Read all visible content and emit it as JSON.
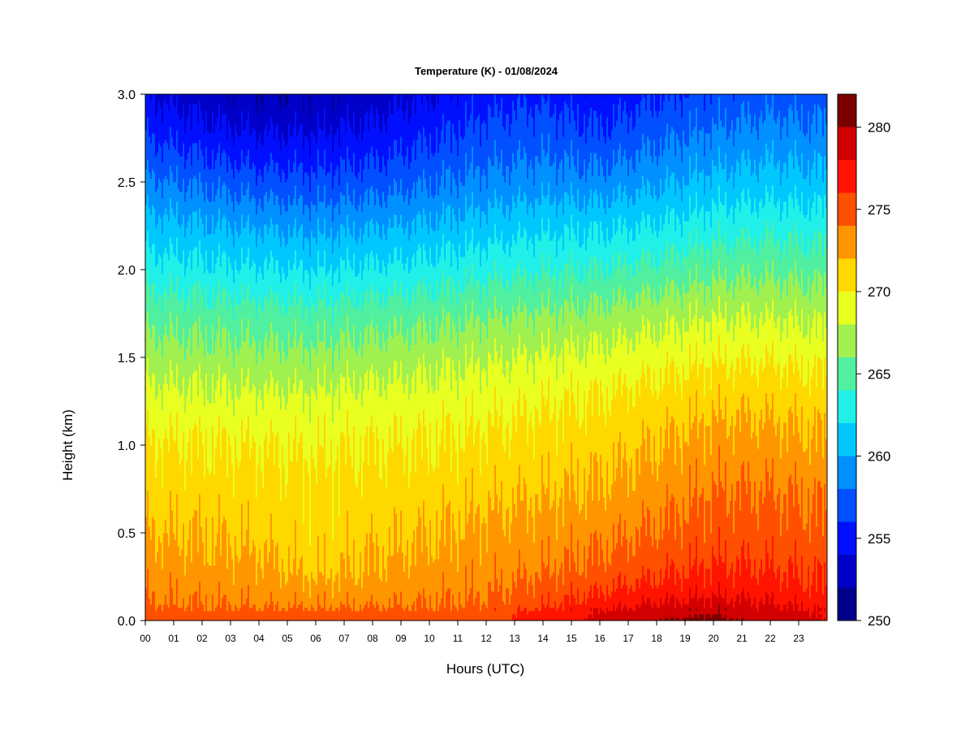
{
  "chart_data": {
    "type": "heatmap",
    "title": "Temperature (K) - 01/08/2024",
    "xlabel": "Hours (UTC)",
    "ylabel": "Height (km)",
    "xlim": [
      0,
      24
    ],
    "ylim": [
      0.0,
      3.0
    ],
    "x_ticks": [
      "00",
      "01",
      "02",
      "03",
      "04",
      "05",
      "06",
      "07",
      "08",
      "09",
      "10",
      "11",
      "12",
      "13",
      "14",
      "15",
      "16",
      "17",
      "18",
      "19",
      "20",
      "21",
      "22",
      "23"
    ],
    "y_ticks": [
      {
        "value": 0.0,
        "label": "0.0"
      },
      {
        "value": 0.5,
        "label": "0.5"
      },
      {
        "value": 1.0,
        "label": "1.0"
      },
      {
        "value": 1.5,
        "label": "1.5"
      },
      {
        "value": 2.0,
        "label": "2.0"
      },
      {
        "value": 2.5,
        "label": "2.5"
      },
      {
        "value": 3.0,
        "label": "3.0"
      }
    ],
    "colorbar": {
      "range": [
        250,
        282
      ],
      "levels": [
        250,
        252,
        254,
        256,
        258,
        260,
        262,
        264,
        266,
        268,
        270,
        272,
        274,
        276,
        278,
        280,
        282
      ],
      "colors": [
        "#00008b",
        "#0000c8",
        "#0010ff",
        "#0050ff",
        "#0090ff",
        "#00c8ff",
        "#20f0e8",
        "#50f0a0",
        "#a0f050",
        "#e8ff20",
        "#ffd800",
        "#ff9600",
        "#ff5000",
        "#ff1400",
        "#d20000",
        "#7d0000"
      ],
      "tick_labels": [
        {
          "value": 250,
          "label": "250"
        },
        {
          "value": 255,
          "label": "255"
        },
        {
          "value": 260,
          "label": "260"
        },
        {
          "value": 265,
          "label": "265"
        },
        {
          "value": 270,
          "label": "270"
        },
        {
          "value": 275,
          "label": "275"
        },
        {
          "value": 280,
          "label": "280"
        }
      ]
    },
    "temperature_grid": {
      "hours": [
        0,
        2,
        4,
        6,
        8,
        10,
        12,
        14,
        16,
        18,
        20,
        22,
        24
      ],
      "heights_km": [
        0.0,
        0.05,
        0.1,
        0.2,
        0.3,
        0.5,
        0.75,
        1.0,
        1.25,
        1.5,
        1.75,
        2.0,
        2.25,
        2.5,
        2.75,
        3.0
      ],
      "values": [
        [
          275.5,
          275.2,
          275.0,
          274.8,
          275.0,
          275.0,
          275.5,
          277.0,
          278.5,
          280.0,
          280.5,
          279.5,
          278.0
        ],
        [
          275.0,
          274.8,
          274.6,
          274.4,
          274.8,
          274.8,
          275.2,
          276.5,
          278.0,
          279.3,
          279.8,
          279.0,
          277.6
        ],
        [
          274.0,
          273.8,
          273.6,
          273.5,
          273.6,
          273.8,
          274.2,
          275.5,
          277.0,
          278.0,
          278.6,
          278.0,
          277.0
        ],
        [
          273.5,
          273.2,
          273.0,
          272.4,
          272.8,
          273.2,
          273.7,
          274.5,
          275.5,
          276.5,
          277.0,
          276.8,
          276.0
        ],
        [
          273.0,
          272.8,
          272.5,
          271.5,
          272.2,
          272.8,
          273.2,
          273.8,
          274.6,
          275.5,
          276.2,
          276.0,
          275.5
        ],
        [
          272.0,
          271.8,
          271.5,
          270.8,
          271.5,
          271.8,
          272.5,
          272.8,
          273.4,
          274.2,
          275.0,
          275.0,
          274.5
        ],
        [
          271.0,
          271.0,
          270.8,
          270.5,
          270.8,
          271.0,
          271.5,
          271.8,
          272.2,
          273.0,
          274.0,
          274.0,
          273.5
        ],
        [
          270.2,
          270.1,
          270.0,
          269.8,
          270.0,
          270.1,
          270.4,
          270.8,
          271.2,
          272.0,
          272.8,
          272.8,
          272.2
        ],
        [
          268.8,
          268.6,
          268.5,
          268.5,
          268.8,
          269.0,
          269.4,
          269.8,
          270.2,
          270.8,
          271.5,
          271.5,
          271.0
        ],
        [
          267.0,
          266.8,
          266.6,
          266.5,
          267.0,
          267.3,
          267.8,
          268.2,
          268.6,
          269.2,
          269.8,
          269.8,
          269.3
        ],
        [
          265.2,
          265.0,
          264.8,
          264.6,
          265.0,
          265.3,
          265.8,
          266.2,
          266.5,
          267.2,
          267.8,
          267.8,
          267.4
        ],
        [
          263.0,
          262.6,
          262.2,
          262.0,
          262.4,
          262.8,
          263.4,
          263.8,
          264.0,
          264.6,
          265.4,
          265.6,
          265.2
        ],
        [
          260.8,
          260.2,
          259.8,
          259.4,
          259.8,
          260.3,
          261.0,
          261.5,
          261.6,
          262.2,
          263.0,
          263.4,
          263.0
        ],
        [
          258.4,
          257.6,
          256.8,
          256.6,
          257.0,
          257.8,
          258.6,
          259.0,
          258.8,
          259.6,
          260.6,
          261.0,
          260.6
        ],
        [
          256.0,
          255.0,
          254.2,
          254.2,
          254.8,
          255.8,
          256.8,
          257.2,
          256.4,
          257.6,
          258.4,
          259.0,
          258.6
        ],
        [
          254.0,
          252.8,
          252.0,
          252.2,
          252.8,
          254.0,
          255.2,
          255.6,
          254.6,
          255.8,
          256.6,
          257.2,
          256.8
        ]
      ]
    }
  }
}
